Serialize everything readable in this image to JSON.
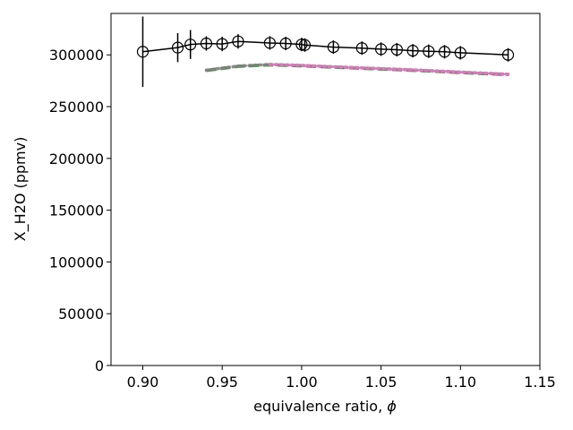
{
  "chart_data": {
    "type": "scatter",
    "title": "",
    "xlabel": "equivalence ratio, ",
    "xlabel_symbol": "ϕ",
    "ylabel": "X_H2O (ppmv)",
    "xlim": [
      0.88,
      1.15
    ],
    "ylim": [
      0,
      340000
    ],
    "xticks": [
      0.9,
      0.95,
      1.0,
      1.05,
      1.1,
      1.15
    ],
    "xtick_labels": [
      "0.90",
      "0.95",
      "1.00",
      "1.05",
      "1.10",
      "1.15"
    ],
    "yticks": [
      0,
      50000,
      100000,
      150000,
      200000,
      250000,
      300000
    ],
    "ytick_labels": [
      "0",
      "50000",
      "100000",
      "150000",
      "200000",
      "250000",
      "300000"
    ],
    "grid": false,
    "series": [
      {
        "style": "solid-line-open-circle-markers-errorbars",
        "color": "#000000",
        "x": [
          0.9,
          0.922,
          0.93,
          0.94,
          0.95,
          0.96,
          0.98,
          0.99,
          1.0,
          1.002,
          1.02,
          1.038,
          1.05,
          1.06,
          1.07,
          1.08,
          1.09,
          1.1,
          1.13
        ],
        "y": [
          303000,
          307000,
          310000,
          311000,
          310500,
          313000,
          311500,
          311000,
          310000,
          309500,
          307500,
          306500,
          305500,
          305000,
          304000,
          303500,
          303000,
          302000,
          300000
        ],
        "yerr": [
          34000,
          14000,
          14000,
          7000,
          7000,
          7000,
          6500,
          6500,
          6500,
          6500,
          6500,
          6500,
          6500,
          6500,
          6500,
          6500,
          6500,
          6500,
          6500
        ]
      },
      {
        "style": "dashed",
        "color": "#8c6d31",
        "x": [
          0.94,
          0.96,
          0.98,
          1.0,
          1.02,
          1.04,
          1.06,
          1.08,
          1.1,
          1.13
        ],
        "y": [
          285000,
          289000,
          290500,
          289500,
          288200,
          287000,
          285800,
          284500,
          283000,
          281000
        ]
      },
      {
        "style": "dashed",
        "color": "#4c9a5a",
        "x": [
          0.94,
          0.96,
          0.98,
          1.0,
          1.02,
          1.04,
          1.06,
          1.08,
          1.1,
          1.13
        ],
        "y": [
          284800,
          288800,
          290300,
          289300,
          288000,
          286800,
          285600,
          284300,
          282800,
          280800
        ]
      },
      {
        "style": "dotted",
        "color": "#7f7f7f",
        "x": [
          0.94,
          0.96,
          0.98,
          1.0,
          1.02,
          1.04,
          1.06,
          1.08,
          1.1,
          1.13
        ],
        "y": [
          285200,
          289200,
          290700,
          289700,
          288400,
          287200,
          286000,
          284700,
          283200,
          281200
        ]
      },
      {
        "style": "dotted",
        "color": "#e377c2",
        "x": [
          0.98,
          1.0,
          1.02,
          1.04,
          1.06,
          1.08,
          1.1,
          1.13
        ],
        "y": [
          290900,
          289900,
          288600,
          287400,
          286200,
          284900,
          283400,
          281400
        ]
      }
    ]
  }
}
